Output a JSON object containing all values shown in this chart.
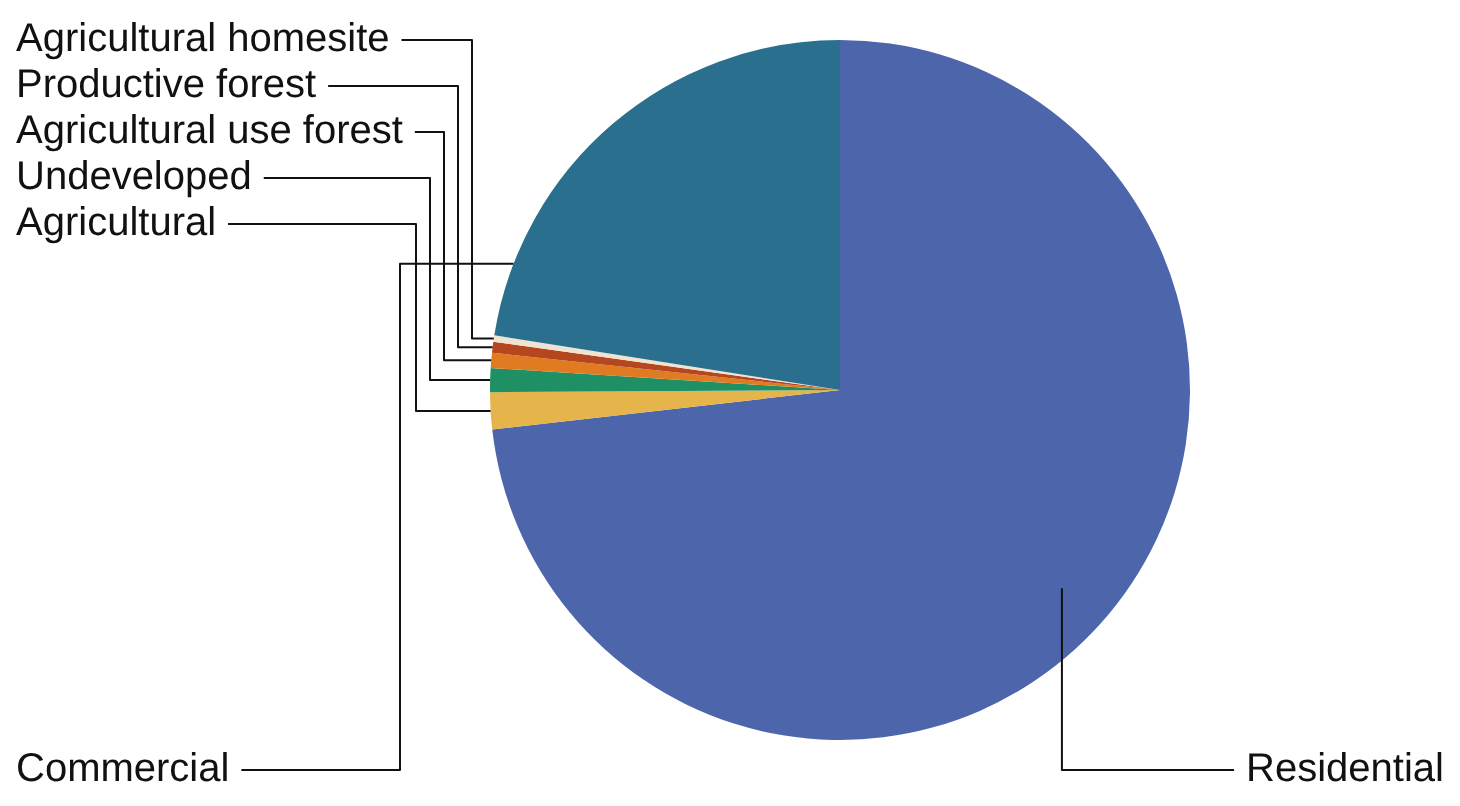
{
  "chart_data": {
    "type": "pie",
    "categories": [
      "Residential",
      "Agricultural",
      "Undeveloped",
      "Agricultural use forest",
      "Productive forest",
      "Agricultural homesite",
      "Commercial"
    ],
    "values": [
      73.2,
      1.7,
      1.1,
      0.7,
      0.5,
      0.3,
      22.5
    ],
    "colors": [
      "#4d66ab",
      "#e5b44a",
      "#1f9064",
      "#e07b22",
      "#b5461e",
      "#efe4d2",
      "#2b6f8e"
    ]
  }
}
